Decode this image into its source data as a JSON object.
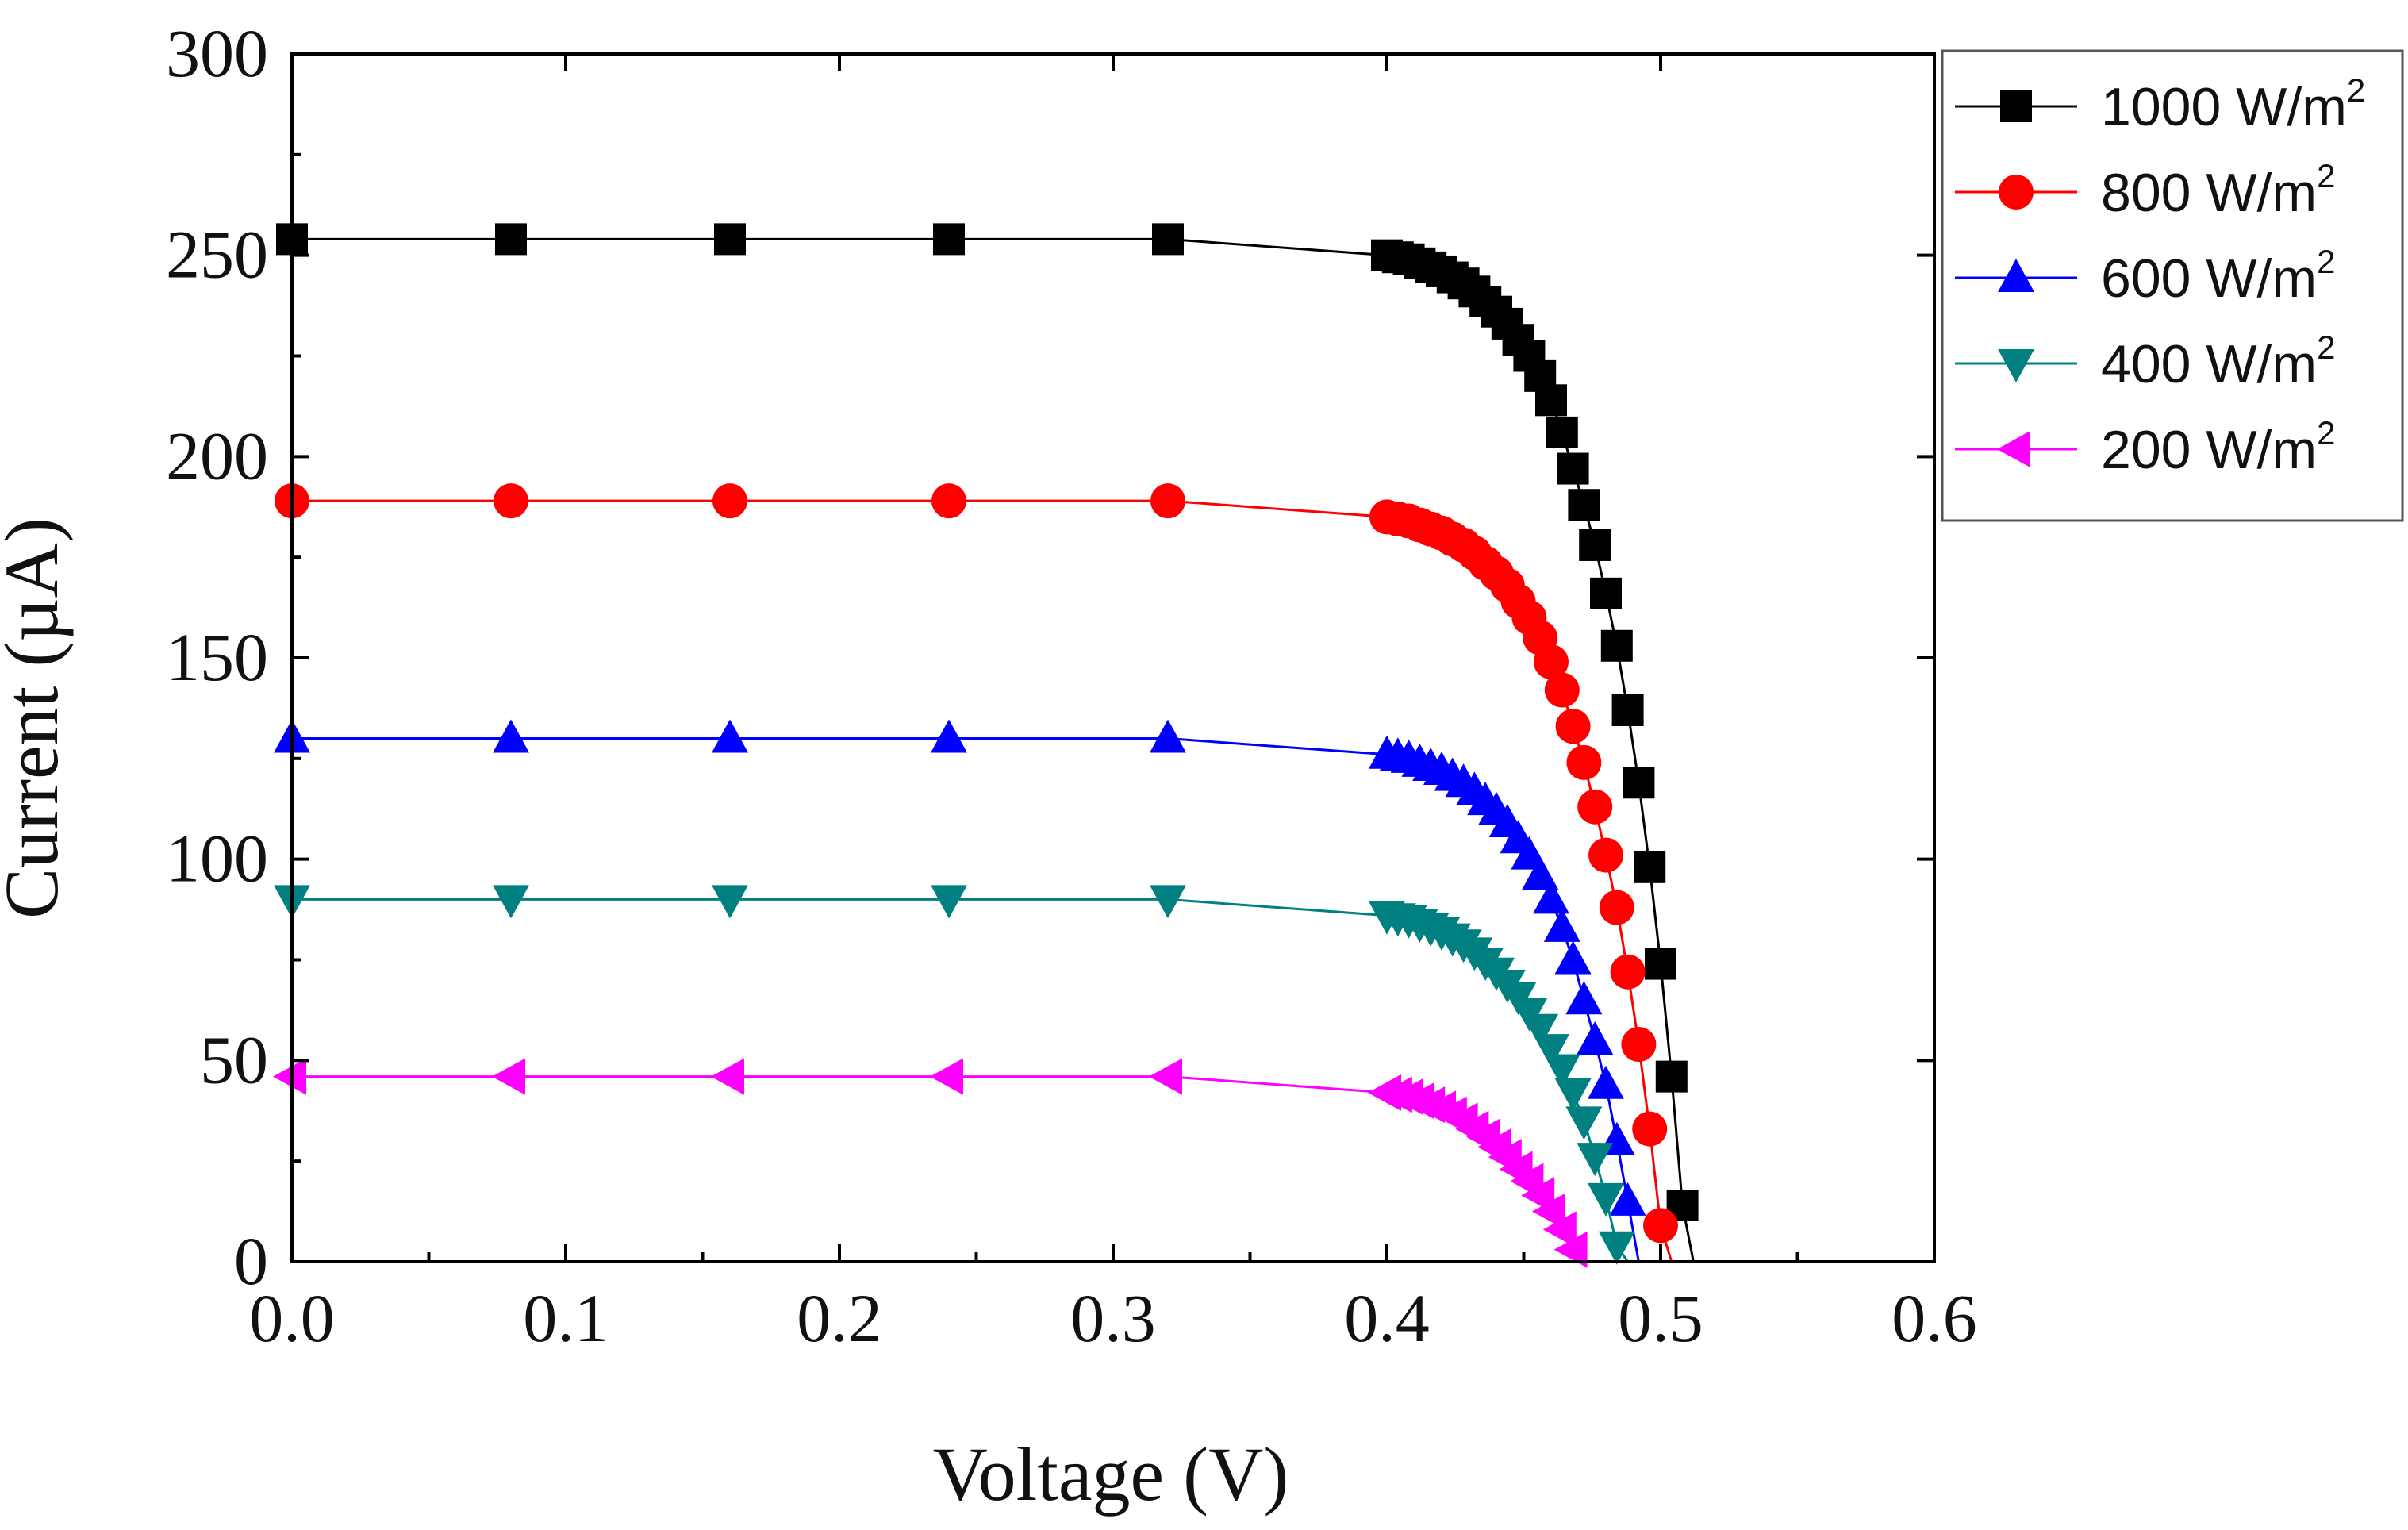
{
  "chart_data": {
    "type": "line",
    "title": "",
    "xlabel": "Voltage (V)",
    "ylabel": "Current (µA)",
    "xlim": [
      0.0,
      0.6
    ],
    "ylim": [
      0,
      300
    ],
    "xticks": [
      "0.0",
      "0.1",
      "0.2",
      "0.3",
      "0.4",
      "0.5",
      "0.6"
    ],
    "yticks": [
      "0",
      "50",
      "100",
      "150",
      "200",
      "250",
      "300"
    ],
    "grid": false,
    "legend_position": "top-right outside",
    "series": [
      {
        "name": "1000 W/m2",
        "label_main": "1000 W/m",
        "label_sup": "2",
        "marker": "square",
        "color": "#000000",
        "x": [
          0.0,
          0.08,
          0.16,
          0.24,
          0.32,
          0.4,
          0.404,
          0.408,
          0.412,
          0.416,
          0.42,
          0.424,
          0.428,
          0.432,
          0.436,
          0.44,
          0.444,
          0.448,
          0.452,
          0.456,
          0.46,
          0.464,
          0.468,
          0.472,
          0.476,
          0.48,
          0.484,
          0.488,
          0.492,
          0.496,
          0.5,
          0.504,
          0.508,
          0.512,
          0.516
        ],
        "y": [
          254,
          254,
          254,
          254,
          254,
          250,
          249.5,
          249,
          248,
          247,
          246,
          244.5,
          243,
          241,
          238.5,
          236,
          233,
          229,
          225,
          220,
          214,
          206,
          197,
          188,
          178,
          166,
          153,
          137,
          119,
          98,
          74,
          46,
          14,
          0,
          0
        ]
      },
      {
        "name": "800 W/m2",
        "label_main": "800 W/m",
        "label_sup": "2",
        "marker": "circle",
        "color": "#ff0000",
        "x": [
          0.0,
          0.08,
          0.16,
          0.24,
          0.32,
          0.4,
          0.404,
          0.408,
          0.412,
          0.416,
          0.42,
          0.424,
          0.428,
          0.432,
          0.436,
          0.44,
          0.444,
          0.448,
          0.452,
          0.456,
          0.46,
          0.464,
          0.468,
          0.472,
          0.476,
          0.48,
          0.484,
          0.488,
          0.492,
          0.496,
          0.5,
          0.504,
          0.508
        ],
        "y": [
          189,
          189,
          189,
          189,
          189,
          185,
          184.5,
          184,
          183,
          182,
          181,
          179.5,
          178,
          176,
          173.5,
          171,
          168,
          164,
          160,
          155,
          149,
          142,
          133,
          124,
          113,
          101,
          88,
          72,
          54,
          33,
          9,
          0,
          0
        ]
      },
      {
        "name": "600 W/m2",
        "label_main": "600 W/m",
        "label_sup": "2",
        "marker": "triangle-up",
        "color": "#0000ff",
        "x": [
          0.0,
          0.08,
          0.16,
          0.24,
          0.32,
          0.4,
          0.404,
          0.408,
          0.412,
          0.416,
          0.42,
          0.424,
          0.428,
          0.432,
          0.436,
          0.44,
          0.444,
          0.448,
          0.452,
          0.456,
          0.46,
          0.464,
          0.468,
          0.472,
          0.476,
          0.48,
          0.484,
          0.488,
          0.492,
          0.496
        ],
        "y": [
          130,
          130,
          130,
          130,
          130,
          126,
          125.5,
          125,
          124,
          123,
          122,
          120.5,
          119,
          117,
          114.5,
          112,
          109,
          105,
          101,
          96,
          90,
          83,
          75,
          65,
          55,
          44,
          30,
          15,
          0,
          0
        ]
      },
      {
        "name": "400 W/m2",
        "label_main": "400 W/m",
        "label_sup": "2",
        "marker": "triangle-down",
        "color": "#008080",
        "x": [
          0.0,
          0.08,
          0.16,
          0.24,
          0.32,
          0.4,
          0.404,
          0.408,
          0.412,
          0.416,
          0.42,
          0.424,
          0.428,
          0.432,
          0.436,
          0.44,
          0.444,
          0.448,
          0.452,
          0.456,
          0.46,
          0.464,
          0.468,
          0.472,
          0.476,
          0.48,
          0.484,
          0.488
        ],
        "y": [
          90,
          90,
          90,
          90,
          90,
          86,
          85.5,
          85,
          84,
          83,
          82,
          80.5,
          79,
          77,
          74.5,
          72,
          69,
          66,
          62,
          58,
          53,
          48,
          42,
          35,
          26,
          16,
          4,
          0
        ]
      },
      {
        "name": "200 W/m2",
        "label_main": "200 W/m",
        "label_sup": "2",
        "marker": "triangle-left",
        "color": "#ff00ff",
        "x": [
          0.0,
          0.08,
          0.16,
          0.24,
          0.32,
          0.4,
          0.404,
          0.408,
          0.412,
          0.416,
          0.42,
          0.424,
          0.428,
          0.432,
          0.436,
          0.44,
          0.444,
          0.448,
          0.452,
          0.456,
          0.46,
          0.464,
          0.468,
          0.472
        ],
        "y": [
          46,
          46,
          46,
          46,
          46,
          42,
          41.5,
          41,
          40,
          39,
          38,
          36.5,
          35,
          33,
          31,
          28.5,
          26,
          23,
          20,
          16.5,
          12.5,
          8,
          3,
          0
        ]
      }
    ]
  }
}
